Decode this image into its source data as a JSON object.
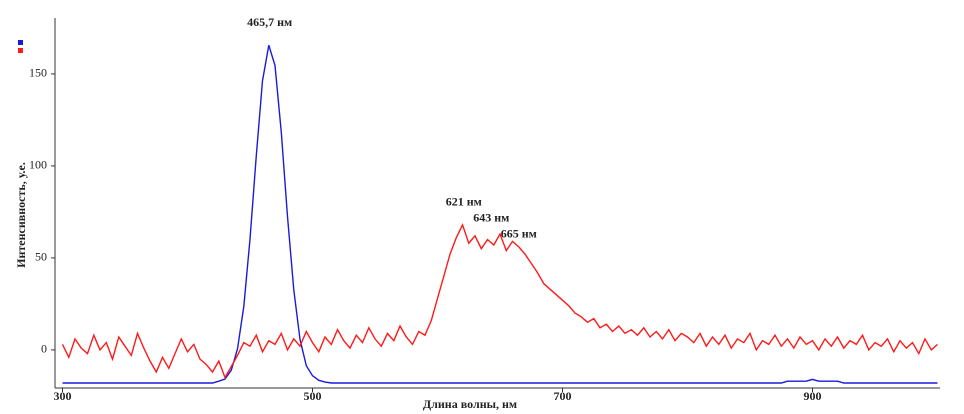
{
  "chart_data": {
    "type": "line",
    "xlabel": "Длина волны, нм",
    "ylabel": "Интенсивность, у.е.",
    "x": [
      300,
      305,
      310,
      315,
      320,
      325,
      330,
      335,
      340,
      345,
      350,
      355,
      360,
      365,
      370,
      375,
      380,
      385,
      390,
      395,
      400,
      405,
      410,
      415,
      420,
      425,
      430,
      435,
      440,
      445,
      450,
      455,
      460,
      465,
      470,
      475,
      480,
      485,
      490,
      495,
      500,
      505,
      510,
      515,
      520,
      525,
      530,
      535,
      540,
      545,
      550,
      555,
      560,
      565,
      570,
      575,
      580,
      585,
      590,
      595,
      600,
      605,
      610,
      615,
      620,
      625,
      630,
      635,
      640,
      645,
      650,
      655,
      660,
      665,
      670,
      675,
      680,
      685,
      690,
      695,
      700,
      705,
      710,
      715,
      720,
      725,
      730,
      735,
      740,
      745,
      750,
      755,
      760,
      765,
      770,
      775,
      780,
      785,
      790,
      795,
      800,
      805,
      810,
      815,
      820,
      825,
      830,
      835,
      840,
      845,
      850,
      855,
      860,
      865,
      870,
      875,
      880,
      885,
      890,
      895,
      900,
      905,
      910,
      915,
      920,
      925,
      930,
      935,
      940,
      945,
      950,
      955,
      960,
      965,
      970,
      975,
      980,
      985,
      990,
      995,
      1000
    ],
    "series": [
      {
        "color": "#1a1adb",
        "values": [
          -18,
          -18,
          -18,
          -18,
          -18,
          -18,
          -18,
          -18,
          -18,
          -18,
          -18,
          -18,
          -18,
          -18,
          -18,
          -18,
          -18,
          -18,
          -18,
          -18,
          -18,
          -18,
          -18,
          -18,
          -18,
          -17,
          -15.8,
          -11,
          0.6,
          23.6,
          60.2,
          105.6,
          146.3,
          165.6,
          154.6,
          118.3,
          72.5,
          32.6,
          5.7,
          -8.6,
          -14,
          -16.5,
          -17.5,
          -18,
          -18,
          -18,
          -18,
          -18,
          -18,
          -18,
          -18,
          -18,
          -18,
          -18,
          -18,
          -18,
          -18,
          -18,
          -18,
          -18,
          -18,
          -18,
          -18,
          -18,
          -18,
          -18,
          -18,
          -18,
          -18,
          -18,
          -18,
          -18,
          -18,
          -18,
          -18,
          -18,
          -18,
          -18,
          -18,
          -18,
          -18,
          -18,
          -18,
          -18,
          -18,
          -18,
          -18,
          -18,
          -18,
          -18,
          -18,
          -18,
          -18,
          -18,
          -18,
          -18,
          -18,
          -18,
          -18,
          -18,
          -18,
          -18,
          -18,
          -18,
          -18,
          -18,
          -18,
          -18,
          -18,
          -18,
          -18,
          -18,
          -18,
          -18,
          -18,
          -18,
          -17,
          -17,
          -17,
          -17,
          -16,
          -17,
          -17,
          -17,
          -17,
          -18,
          -18,
          -18,
          -18,
          -18,
          -18,
          -18,
          -18,
          -18,
          -18,
          -18,
          -18,
          -18,
          -18,
          -18,
          -18
        ]
      },
      {
        "color": "#ff1a1a",
        "values": [
          3,
          -4,
          6,
          1,
          -2,
          8,
          0,
          4,
          -5,
          7,
          2,
          -3,
          9,
          1,
          -6,
          -12,
          -4,
          -10,
          -2,
          6,
          -1,
          3,
          -5,
          -8,
          -12,
          -6,
          -15,
          -9,
          -3,
          4,
          2,
          8,
          -1,
          5,
          3,
          9,
          0,
          6,
          2,
          10,
          4,
          -1,
          7,
          3,
          11,
          5,
          1,
          8,
          4,
          12,
          6,
          2,
          9,
          5,
          13,
          7,
          3,
          10,
          8,
          16,
          28,
          40,
          52,
          61,
          68,
          58,
          62,
          55,
          60,
          57,
          63,
          54,
          59,
          56,
          52,
          47,
          42,
          36,
          33,
          30,
          27,
          24,
          20,
          18,
          15,
          17,
          12,
          14,
          10,
          13,
          9,
          11,
          8,
          12,
          7,
          10,
          6,
          11,
          5,
          9,
          7,
          4,
          9,
          2,
          7,
          3,
          8,
          1,
          6,
          4,
          9,
          0,
          5,
          3,
          8,
          2,
          6,
          1,
          7,
          3,
          5,
          0,
          6,
          2,
          7,
          1,
          5,
          3,
          8,
          0,
          4,
          2,
          6,
          -1,
          5,
          1,
          4,
          -2,
          6,
          0,
          3
        ]
      }
    ],
    "annotations": [
      {
        "text": "465,7 нм",
        "x": 465.7
      },
      {
        "text": "621 нм",
        "x": 621
      },
      {
        "text": "643 нм",
        "x": 643
      },
      {
        "text": "665 нм",
        "x": 665
      }
    ],
    "xlim": [
      294,
      1002
    ],
    "xticks": [
      300,
      500,
      700,
      900
    ],
    "ylim": [
      -20.7,
      180.4
    ],
    "yticks": [
      0,
      50,
      100,
      150
    ],
    "grid": false
  }
}
